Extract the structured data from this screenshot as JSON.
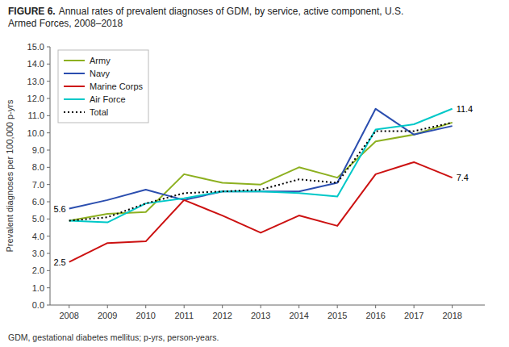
{
  "chart_data": {
    "type": "line",
    "title": "FIGURE 6.",
    "subtitle": "Annual rates of prevalent diagnoses of GDM, by service, active component, U.S.\nArmed Forces, 2008–2018",
    "footnote": "GDM, gestational diabetes mellitus; p-yrs, person-years.",
    "y_label": "Prevalent diagnoses per 100,000 p-yrs",
    "x": [
      2008,
      2009,
      2010,
      2011,
      2012,
      2013,
      2014,
      2015,
      2016,
      2017,
      2018
    ],
    "xlim": [
      2007.5,
      2018.85
    ],
    "xticks": [
      2008,
      2009,
      2010,
      2011,
      2012,
      2013,
      2014,
      2015,
      2016,
      2017,
      2018
    ],
    "ylim": [
      0,
      15.0
    ],
    "yticks": [
      {
        "value": 0.0,
        "label": "0.0"
      },
      {
        "value": 1.0,
        "label": "1.0"
      },
      {
        "value": 2.0,
        "label": "2.0"
      },
      {
        "value": 3.0,
        "label": "3.0"
      },
      {
        "value": 4.0,
        "label": "4.0"
      },
      {
        "value": 5.0,
        "label": "5.0"
      },
      {
        "value": 6.0,
        "label": "6.0"
      },
      {
        "value": 7.0,
        "label": "7.0"
      },
      {
        "value": 8.0,
        "label": "8.0"
      },
      {
        "value": 9.0,
        "label": "9.0"
      },
      {
        "value": 10.0,
        "label": "10.0"
      },
      {
        "value": 11.0,
        "label": "11.0"
      },
      {
        "value": 12.0,
        "label": "12.0"
      },
      {
        "value": 13.0,
        "label": "13.0"
      },
      {
        "value": 14.0,
        "label": "14.0"
      },
      {
        "value": 15.0,
        "label": "15.0"
      }
    ],
    "series": [
      {
        "name": "Army",
        "color": "#8DB020",
        "values": [
          4.9,
          5.3,
          5.4,
          7.6,
          7.1,
          7.0,
          8.0,
          7.4,
          9.5,
          9.9,
          10.6
        ]
      },
      {
        "name": "Navy",
        "color": "#2B4EAF",
        "values": [
          5.6,
          6.1,
          6.7,
          6.1,
          6.6,
          6.6,
          6.6,
          7.1,
          11.4,
          9.9,
          10.4
        ]
      },
      {
        "name": "Marine Corps",
        "color": "#CC1111",
        "values": [
          2.5,
          3.6,
          3.7,
          6.1,
          5.2,
          4.2,
          5.2,
          4.6,
          7.6,
          8.3,
          7.4
        ]
      },
      {
        "name": "Air Force",
        "color": "#00C8C8",
        "values": [
          4.9,
          4.8,
          5.9,
          6.2,
          6.6,
          6.6,
          6.5,
          6.3,
          10.2,
          10.5,
          11.4
        ]
      },
      {
        "name": "Total",
        "color": "#000000",
        "line_style": "dotted",
        "values": [
          4.9,
          5.1,
          5.9,
          6.5,
          6.6,
          6.7,
          7.3,
          7.1,
          10.1,
          10.1,
          10.6
        ]
      }
    ],
    "annotations": [
      {
        "text": "5.6",
        "x": 2008,
        "y": 5.6
      },
      {
        "text": "2.5",
        "x": 2008,
        "y": 2.5
      },
      {
        "text": "11.4",
        "x": 2018,
        "y": 11.4
      },
      {
        "text": "7.4",
        "x": 2018,
        "y": 7.4
      }
    ],
    "legend": "upper left",
    "grid": false
  }
}
